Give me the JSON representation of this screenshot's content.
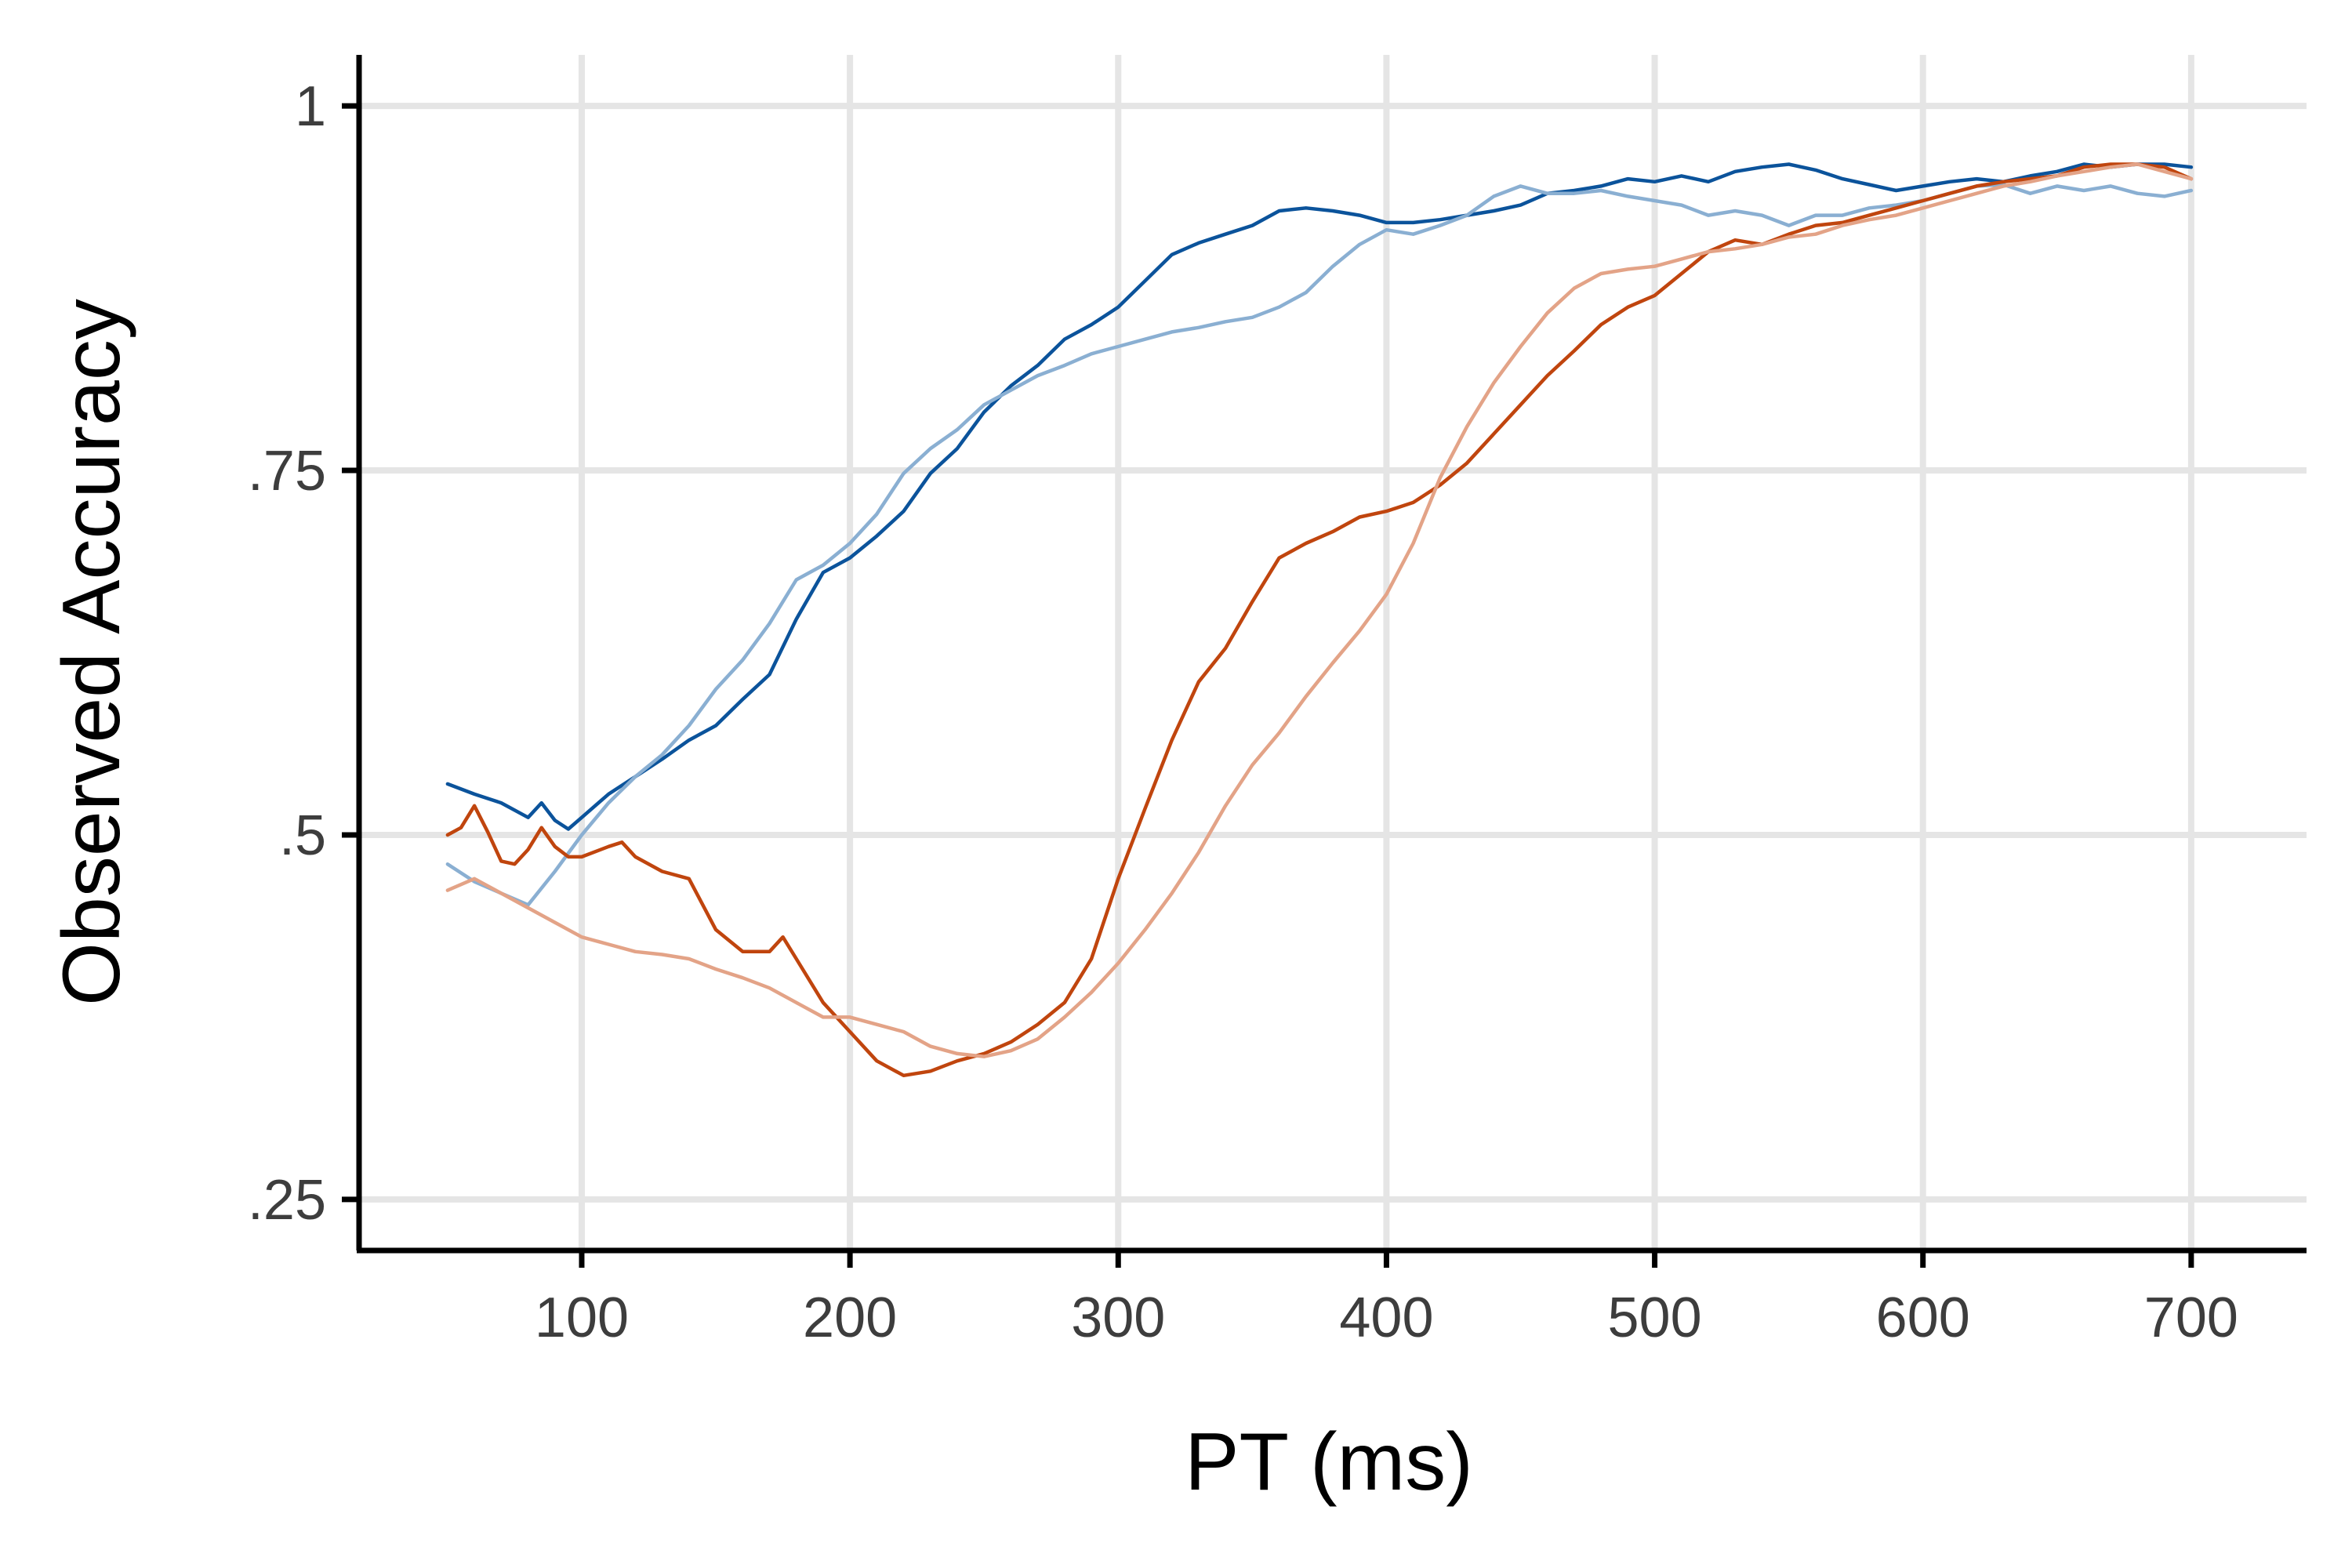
{
  "chart_data": {
    "type": "line",
    "title": "",
    "xlabel": "PT (ms)",
    "ylabel": "Observed Accuracy",
    "xlim": [
      17,
      743
    ],
    "ylim": [
      0.215,
      1.035
    ],
    "x_ticks": [
      100,
      200,
      300,
      400,
      500,
      600,
      700
    ],
    "x_tick_labels": [
      "100",
      "200",
      "300",
      "400",
      "500",
      "600",
      "700"
    ],
    "y_ticks": [
      0.25,
      0.5,
      0.75,
      1.0
    ],
    "y_tick_labels": [
      ".25",
      ".5",
      ".75",
      "1"
    ],
    "grid": true,
    "legend": "none",
    "series": [
      {
        "color": "#0b539b",
        "x": [
          50,
          60,
          70,
          80,
          85,
          90,
          95,
          100,
          110,
          120,
          130,
          140,
          150,
          160,
          170,
          180,
          190,
          200,
          210,
          220,
          230,
          240,
          250,
          260,
          270,
          280,
          290,
          300,
          310,
          320,
          330,
          340,
          350,
          360,
          370,
          380,
          390,
          400,
          410,
          420,
          430,
          440,
          450,
          460,
          470,
          480,
          490,
          500,
          510,
          520,
          530,
          540,
          550,
          560,
          570,
          580,
          590,
          600,
          610,
          620,
          630,
          640,
          650,
          660,
          670,
          680,
          690,
          700
        ],
        "y": [
          0.535,
          0.528,
          0.522,
          0.512,
          0.522,
          0.51,
          0.504,
          0.512,
          0.528,
          0.54,
          0.552,
          0.565,
          0.575,
          0.593,
          0.61,
          0.648,
          0.68,
          0.69,
          0.705,
          0.722,
          0.748,
          0.765,
          0.79,
          0.808,
          0.822,
          0.84,
          0.85,
          0.862,
          0.88,
          0.898,
          0.906,
          0.912,
          0.918,
          0.928,
          0.93,
          0.928,
          0.925,
          0.92,
          0.92,
          0.922,
          0.925,
          0.928,
          0.932,
          0.94,
          0.942,
          0.945,
          0.95,
          0.948,
          0.952,
          0.948,
          0.955,
          0.958,
          0.96,
          0.956,
          0.95,
          0.946,
          0.942,
          0.945,
          0.948,
          0.95,
          0.948,
          0.952,
          0.955,
          0.96,
          0.958,
          0.96,
          0.96,
          0.958
        ]
      },
      {
        "color": "#8aafd2",
        "x": [
          50,
          60,
          70,
          80,
          90,
          100,
          110,
          120,
          130,
          140,
          150,
          160,
          170,
          180,
          190,
          200,
          210,
          220,
          230,
          240,
          250,
          260,
          270,
          280,
          290,
          300,
          310,
          320,
          330,
          340,
          350,
          360,
          370,
          380,
          390,
          400,
          410,
          420,
          430,
          440,
          450,
          460,
          470,
          480,
          490,
          500,
          510,
          520,
          530,
          540,
          550,
          560,
          570,
          580,
          590,
          600,
          610,
          620,
          630,
          640,
          650,
          660,
          670,
          680,
          690,
          700
        ],
        "y": [
          0.48,
          0.468,
          0.46,
          0.452,
          0.475,
          0.5,
          0.522,
          0.54,
          0.555,
          0.575,
          0.6,
          0.62,
          0.645,
          0.675,
          0.685,
          0.7,
          0.72,
          0.748,
          0.765,
          0.778,
          0.795,
          0.805,
          0.815,
          0.822,
          0.83,
          0.835,
          0.84,
          0.845,
          0.848,
          0.852,
          0.855,
          0.862,
          0.872,
          0.89,
          0.905,
          0.915,
          0.912,
          0.918,
          0.925,
          0.938,
          0.945,
          0.94,
          0.94,
          0.942,
          0.938,
          0.935,
          0.932,
          0.925,
          0.928,
          0.925,
          0.918,
          0.925,
          0.925,
          0.93,
          0.932,
          0.935,
          0.94,
          0.945,
          0.946,
          0.94,
          0.945,
          0.942,
          0.945,
          0.94,
          0.938,
          0.942
        ]
      },
      {
        "color": "#c0450e",
        "x": [
          50,
          55,
          60,
          65,
          70,
          75,
          80,
          85,
          90,
          95,
          100,
          110,
          115,
          120,
          130,
          140,
          150,
          160,
          170,
          175,
          180,
          190,
          200,
          210,
          220,
          230,
          240,
          250,
          260,
          270,
          280,
          290,
          300,
          310,
          320,
          330,
          340,
          350,
          360,
          370,
          380,
          390,
          400,
          410,
          420,
          430,
          440,
          450,
          460,
          470,
          480,
          490,
          500,
          510,
          520,
          530,
          540,
          550,
          560,
          570,
          580,
          590,
          600,
          610,
          620,
          630,
          640,
          650,
          660,
          670,
          680,
          690,
          700
        ],
        "y": [
          0.5,
          0.505,
          0.52,
          0.502,
          0.482,
          0.48,
          0.49,
          0.505,
          0.492,
          0.485,
          0.485,
          0.492,
          0.495,
          0.485,
          0.475,
          0.47,
          0.435,
          0.42,
          0.42,
          0.43,
          0.415,
          0.385,
          0.365,
          0.345,
          0.335,
          0.338,
          0.345,
          0.35,
          0.358,
          0.37,
          0.385,
          0.415,
          0.47,
          0.518,
          0.565,
          0.605,
          0.628,
          0.66,
          0.69,
          0.7,
          0.708,
          0.718,
          0.722,
          0.728,
          0.74,
          0.755,
          0.775,
          0.795,
          0.815,
          0.832,
          0.85,
          0.862,
          0.87,
          0.885,
          0.9,
          0.908,
          0.905,
          0.912,
          0.918,
          0.92,
          0.925,
          0.93,
          0.935,
          0.94,
          0.945,
          0.948,
          0.95,
          0.952,
          0.958,
          0.96,
          0.96,
          0.958,
          0.95
        ]
      },
      {
        "color": "#e3a387",
        "x": [
          50,
          60,
          70,
          80,
          90,
          100,
          110,
          120,
          130,
          140,
          150,
          160,
          170,
          180,
          190,
          200,
          210,
          220,
          230,
          240,
          250,
          260,
          270,
          280,
          290,
          300,
          310,
          320,
          330,
          340,
          350,
          360,
          370,
          380,
          390,
          400,
          410,
          420,
          430,
          440,
          450,
          460,
          470,
          480,
          490,
          500,
          510,
          520,
          530,
          540,
          550,
          560,
          570,
          580,
          590,
          600,
          610,
          620,
          630,
          640,
          650,
          660,
          670,
          680,
          690,
          700
        ],
        "y": [
          0.462,
          0.47,
          0.46,
          0.45,
          0.44,
          0.43,
          0.425,
          0.42,
          0.418,
          0.415,
          0.408,
          0.402,
          0.395,
          0.385,
          0.375,
          0.375,
          0.37,
          0.365,
          0.355,
          0.35,
          0.348,
          0.352,
          0.36,
          0.375,
          0.392,
          0.412,
          0.435,
          0.46,
          0.488,
          0.52,
          0.548,
          0.57,
          0.595,
          0.618,
          0.64,
          0.665,
          0.7,
          0.745,
          0.78,
          0.81,
          0.835,
          0.858,
          0.875,
          0.885,
          0.888,
          0.89,
          0.895,
          0.9,
          0.902,
          0.905,
          0.91,
          0.912,
          0.918,
          0.922,
          0.925,
          0.93,
          0.935,
          0.94,
          0.945,
          0.948,
          0.952,
          0.955,
          0.958,
          0.96,
          0.955,
          0.95
        ]
      }
    ]
  }
}
